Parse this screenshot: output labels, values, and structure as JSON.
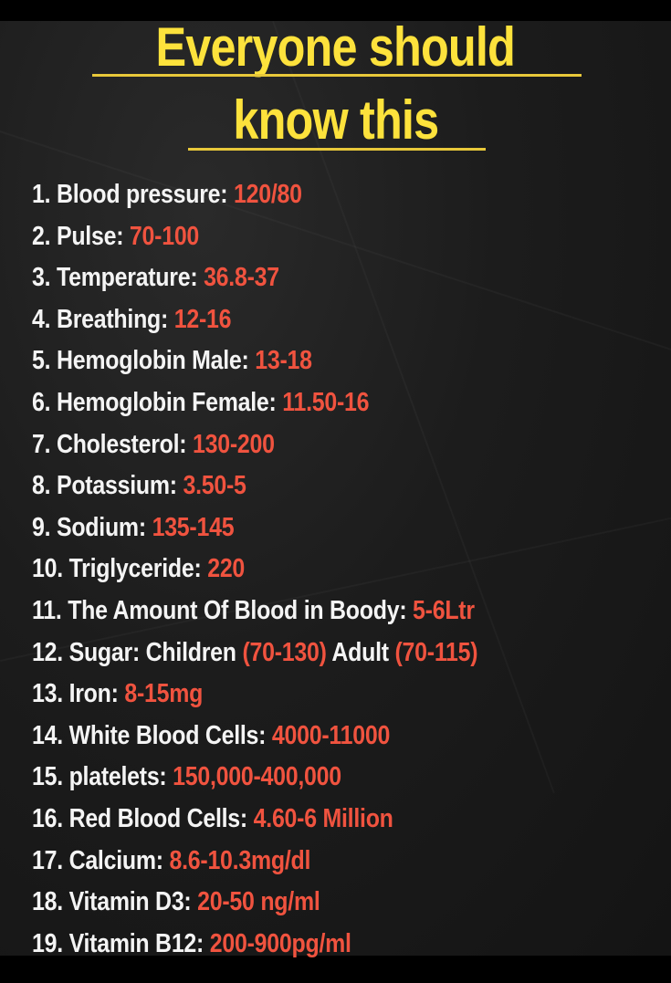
{
  "title": {
    "line1": "Everyone should",
    "line2": "know this"
  },
  "colors": {
    "title": "#fde23c",
    "label": "#f4f4f4",
    "value": "#f0533f",
    "background": "#1c1c1c"
  },
  "items": [
    {
      "parts": [
        {
          "t": "1. Blood pressure: ",
          "red": false
        },
        {
          "t": "120/80",
          "red": true
        }
      ]
    },
    {
      "parts": [
        {
          "t": "2. Pulse: ",
          "red": false
        },
        {
          "t": "70-100",
          "red": true
        }
      ]
    },
    {
      "parts": [
        {
          "t": "3. Temperature: ",
          "red": false
        },
        {
          "t": "36.8-37",
          "red": true
        }
      ]
    },
    {
      "parts": [
        {
          "t": "4. Breathing: ",
          "red": false
        },
        {
          "t": "12-16",
          "red": true
        }
      ]
    },
    {
      "parts": [
        {
          "t": "5. Hemoglobin Male: ",
          "red": false
        },
        {
          "t": "13-18",
          "red": true
        }
      ]
    },
    {
      "parts": [
        {
          "t": "6. Hemoglobin Female: ",
          "red": false
        },
        {
          "t": "11.50-16",
          "red": true
        }
      ]
    },
    {
      "parts": [
        {
          "t": "7. Cholesterol: ",
          "red": false
        },
        {
          "t": "130-200",
          "red": true
        }
      ]
    },
    {
      "parts": [
        {
          "t": "8. Potassium: ",
          "red": false
        },
        {
          "t": "3.50-5",
          "red": true
        }
      ]
    },
    {
      "parts": [
        {
          "t": "9. Sodium: ",
          "red": false
        },
        {
          "t": "135-145",
          "red": true
        }
      ]
    },
    {
      "parts": [
        {
          "t": "10. Triglyceride: ",
          "red": false
        },
        {
          "t": "220",
          "red": true
        }
      ]
    },
    {
      "parts": [
        {
          "t": "11. The Amount Of Blood in Boody: ",
          "red": false
        },
        {
          "t": "5-6Ltr",
          "red": true
        }
      ]
    },
    {
      "parts": [
        {
          "t": "12. Sugar: Children ",
          "red": false
        },
        {
          "t": "(70-130)",
          "red": true
        },
        {
          "t": " Adult ",
          "red": false
        },
        {
          "t": "(70-115)",
          "red": true
        }
      ]
    },
    {
      "parts": [
        {
          "t": "13. Iron: ",
          "red": false
        },
        {
          "t": "8-15mg",
          "red": true
        }
      ]
    },
    {
      "parts": [
        {
          "t": "14. White Blood Cells: ",
          "red": false
        },
        {
          "t": "4000-11000",
          "red": true
        }
      ]
    },
    {
      "parts": [
        {
          "t": "15. platelets: ",
          "red": false
        },
        {
          "t": "150,000-400,000",
          "red": true
        }
      ]
    },
    {
      "parts": [
        {
          "t": "16. Red Blood Cells: ",
          "red": false
        },
        {
          "t": "4.60-6 Million",
          "red": true
        }
      ]
    },
    {
      "parts": [
        {
          "t": "17. Calcium: ",
          "red": false
        },
        {
          "t": "8.6-10.3mg/dl",
          "red": true
        }
      ]
    },
    {
      "parts": [
        {
          "t": "18. Vitamin D3: ",
          "red": false
        },
        {
          "t": "20-50 ng/ml",
          "red": true
        }
      ]
    },
    {
      "parts": [
        {
          "t": "19. Vitamin B12: ",
          "red": false
        },
        {
          "t": "200-900pg/ml",
          "red": true
        }
      ]
    }
  ]
}
